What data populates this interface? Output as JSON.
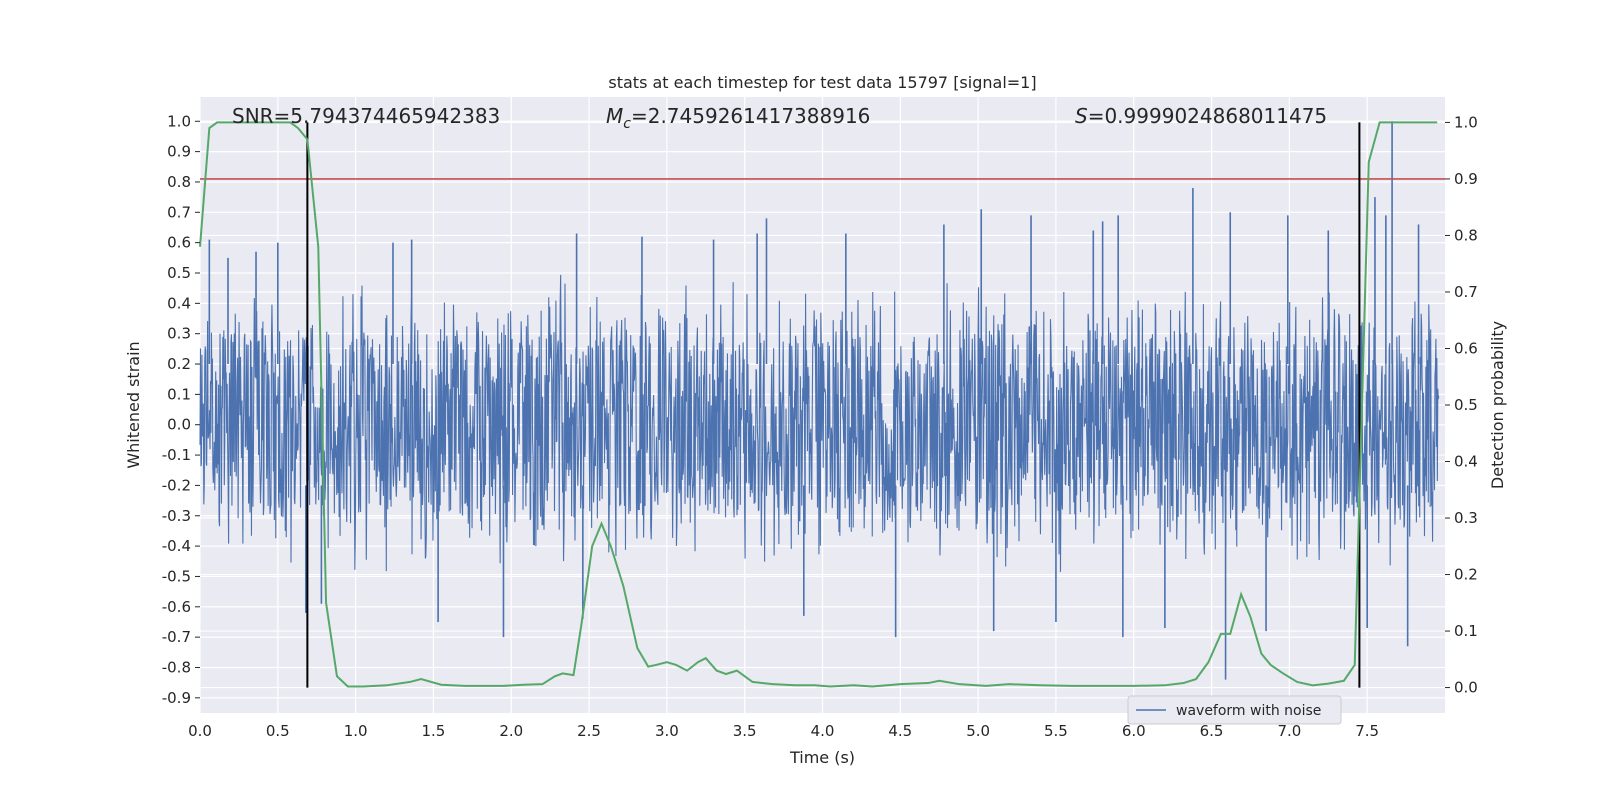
{
  "chart_data": {
    "type": "line",
    "title": "stats at each timestep for test data 15797 [signal=1]",
    "xlabel": "Time (s)",
    "ylabel": "Whitened strain",
    "y2label": "Detection probability",
    "xlim": [
      0.0,
      8.0
    ],
    "ylim": [
      -0.95,
      1.08
    ],
    "y2lim": [
      -0.045,
      1.045
    ],
    "x_ticks": [
      "0.0",
      "0.5",
      "1.0",
      "1.5",
      "2.0",
      "2.5",
      "3.0",
      "3.5",
      "4.0",
      "4.5",
      "5.0",
      "5.5",
      "6.0",
      "6.5",
      "7.0",
      "7.5"
    ],
    "y_ticks": [
      "1.0",
      "0.9",
      "0.8",
      "0.7",
      "0.6",
      "0.5",
      "0.4",
      "0.3",
      "0.2",
      "0.1",
      "0.0",
      "-0.1",
      "-0.2",
      "-0.3",
      "-0.4",
      "-0.5",
      "-0.6",
      "-0.7",
      "-0.8",
      "-0.9"
    ],
    "y2_ticks": [
      "1.0",
      "0.9",
      "0.8",
      "0.7",
      "0.6",
      "0.5",
      "0.4",
      "0.3",
      "0.2",
      "0.1",
      "0.0"
    ],
    "annotations": {
      "snr": "SNR=5.794374465942383",
      "mc_symbol": "M",
      "mc_sub": "c",
      "mc_value": "=2.7459261417388916",
      "s_symbol": "S",
      "s_value": "=0.9999024868011475"
    },
    "threshold_y2": 0.9,
    "vlines_x": [
      0.69,
      7.45
    ],
    "legend": {
      "label": "waveform with noise",
      "placement": "lower-right"
    },
    "grid": true,
    "series": [
      {
        "name": "waveform with noise",
        "axis": "left",
        "color": "#4c72b0",
        "description": "dense whitened strain noise, core amplitude ~±0.26",
        "core_amplitude": 0.26,
        "spike_peaks": [
          [
            0.06,
            0.61
          ],
          [
            0.18,
            0.55
          ],
          [
            0.36,
            0.57
          ],
          [
            0.5,
            0.6
          ],
          [
            0.68,
            -0.62
          ],
          [
            0.78,
            -0.59
          ],
          [
            1.24,
            0.6
          ],
          [
            1.36,
            0.61
          ],
          [
            1.53,
            -0.65
          ],
          [
            1.95,
            -0.7
          ],
          [
            2.42,
            0.63
          ],
          [
            2.46,
            -0.64
          ],
          [
            2.84,
            0.62
          ],
          [
            3.3,
            0.61
          ],
          [
            3.58,
            0.63
          ],
          [
            3.64,
            0.68
          ],
          [
            3.88,
            -0.63
          ],
          [
            4.15,
            0.63
          ],
          [
            4.47,
            -0.7
          ],
          [
            4.78,
            0.66
          ],
          [
            5.02,
            0.71
          ],
          [
            5.1,
            -0.68
          ],
          [
            5.34,
            0.69
          ],
          [
            5.5,
            -0.65
          ],
          [
            5.74,
            0.64
          ],
          [
            5.8,
            0.67
          ],
          [
            5.9,
            0.69
          ],
          [
            5.93,
            -0.7
          ],
          [
            6.2,
            -0.67
          ],
          [
            6.38,
            0.78
          ],
          [
            6.59,
            -0.84
          ],
          [
            6.62,
            0.7
          ],
          [
            6.85,
            -0.68
          ],
          [
            6.99,
            0.69
          ],
          [
            7.25,
            0.64
          ],
          [
            7.5,
            -0.67
          ],
          [
            7.55,
            0.75
          ],
          [
            7.62,
            0.69
          ],
          [
            7.66,
            1.0
          ],
          [
            7.76,
            -0.73
          ],
          [
            7.83,
            0.66
          ]
        ]
      },
      {
        "name": "",
        "axis": "right",
        "color": "#55a868",
        "x": [
          0.0,
          0.06,
          0.11,
          0.3,
          0.58,
          0.63,
          0.69,
          0.76,
          0.81,
          0.88,
          0.95,
          1.05,
          1.2,
          1.35,
          1.42,
          1.55,
          1.7,
          1.95,
          2.08,
          2.2,
          2.28,
          2.33,
          2.4,
          2.45,
          2.52,
          2.58,
          2.64,
          2.72,
          2.81,
          2.88,
          2.93,
          3.0,
          3.06,
          3.13,
          3.2,
          3.25,
          3.32,
          3.38,
          3.45,
          3.55,
          3.68,
          3.82,
          3.95,
          4.05,
          4.2,
          4.32,
          4.5,
          4.68,
          4.75,
          4.88,
          5.05,
          5.2,
          5.4,
          5.6,
          5.8,
          6.0,
          6.2,
          6.32,
          6.4,
          6.48,
          6.56,
          6.62,
          6.69,
          6.75,
          6.82,
          6.88,
          6.96,
          7.05,
          7.15,
          7.25,
          7.35,
          7.42,
          7.51,
          7.58,
          7.7,
          7.95
        ],
        "y": [
          0.78,
          0.99,
          1.0,
          1.0,
          1.0,
          0.99,
          0.97,
          0.78,
          0.15,
          0.02,
          0.002,
          0.002,
          0.004,
          0.01,
          0.015,
          0.005,
          0.003,
          0.003,
          0.005,
          0.006,
          0.02,
          0.025,
          0.022,
          0.11,
          0.25,
          0.29,
          0.25,
          0.18,
          0.07,
          0.037,
          0.04,
          0.045,
          0.04,
          0.03,
          0.045,
          0.052,
          0.03,
          0.024,
          0.03,
          0.01,
          0.006,
          0.004,
          0.004,
          0.002,
          0.004,
          0.002,
          0.006,
          0.008,
          0.012,
          0.006,
          0.003,
          0.006,
          0.004,
          0.003,
          0.003,
          0.003,
          0.004,
          0.008,
          0.015,
          0.045,
          0.095,
          0.095,
          0.165,
          0.125,
          0.06,
          0.04,
          0.025,
          0.01,
          0.004,
          0.007,
          0.012,
          0.04,
          0.93,
          1.0,
          1.0,
          1.0
        ]
      },
      {
        "name": "",
        "axis": "right",
        "color": "#c44e52",
        "description": "detection threshold line",
        "y": 0.9
      }
    ]
  }
}
